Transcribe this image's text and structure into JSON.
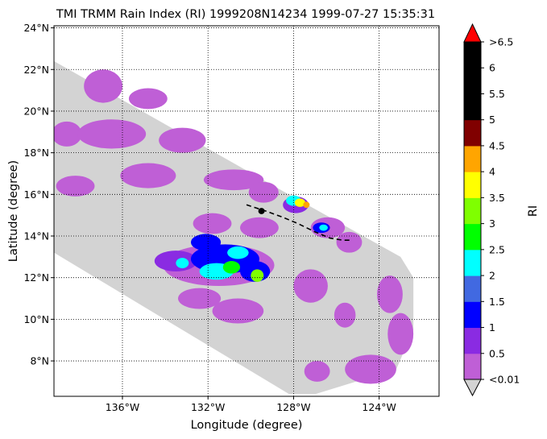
{
  "chart_data": {
    "type": "heatmap",
    "title": "TMI TRMM Rain Index (RI) 1999208N14234 1999-07-27 15:35:31",
    "xlabel": "Longitude (degree)",
    "ylabel": "Latitude (degree)",
    "xlim": [
      -139.2,
      -121.2
    ],
    "ylim": [
      6.3,
      24.1
    ],
    "grid": true,
    "x_ticks": [
      {
        "value": -136,
        "label": "136°W"
      },
      {
        "value": -132,
        "label": "132°W"
      },
      {
        "value": -128,
        "label": "128°W"
      },
      {
        "value": -124,
        "label": "124°W"
      }
    ],
    "y_ticks": [
      {
        "value": 8,
        "label": "8°N"
      },
      {
        "value": 10,
        "label": "10°N"
      },
      {
        "value": 12,
        "label": "12°N"
      },
      {
        "value": 14,
        "label": "14°N"
      },
      {
        "value": 16,
        "label": "16°N"
      },
      {
        "value": 18,
        "label": "18°N"
      },
      {
        "value": 20,
        "label": "20°N"
      },
      {
        "value": 22,
        "label": "22°N"
      },
      {
        "value": 24,
        "label": "24°N"
      }
    ],
    "swath_color": "#d3d3d3",
    "swath_polygon": [
      [
        -139.2,
        22.4
      ],
      [
        -128.4,
        16.1
      ],
      [
        -123.0,
        13.0
      ],
      [
        -122.4,
        12.0
      ],
      [
        -122.4,
        9.5
      ],
      [
        -123.2,
        7.6
      ],
      [
        -127.0,
        6.4
      ],
      [
        -128.2,
        6.4
      ],
      [
        -139.2,
        13.2
      ]
    ],
    "rain_cells": [
      {
        "lon": -138.6,
        "lat": 18.9,
        "rx": 0.7,
        "ry": 0.6,
        "ri": 0.3
      },
      {
        "lon": -136.5,
        "lat": 18.9,
        "rx": 1.6,
        "ry": 0.7,
        "ri": 0.3
      },
      {
        "lon": -133.2,
        "lat": 18.6,
        "rx": 1.1,
        "ry": 0.6,
        "ri": 0.3
      },
      {
        "lon": -136.9,
        "lat": 21.2,
        "rx": 0.9,
        "ry": 0.8,
        "ri": 0.3
      },
      {
        "lon": -134.8,
        "lat": 20.6,
        "rx": 0.9,
        "ry": 0.5,
        "ri": 0.3
      },
      {
        "lon": -138.2,
        "lat": 16.4,
        "rx": 0.9,
        "ry": 0.5,
        "ri": 0.3
      },
      {
        "lon": -134.8,
        "lat": 16.9,
        "rx": 1.3,
        "ry": 0.6,
        "ri": 0.3
      },
      {
        "lon": -130.8,
        "lat": 16.7,
        "rx": 1.4,
        "ry": 0.5,
        "ri": 0.3
      },
      {
        "lon": -129.4,
        "lat": 16.1,
        "rx": 0.7,
        "ry": 0.5,
        "ri": 0.3
      },
      {
        "lon": -131.8,
        "lat": 14.6,
        "rx": 0.9,
        "ry": 0.5,
        "ri": 0.3
      },
      {
        "lon": -129.6,
        "lat": 14.4,
        "rx": 0.9,
        "ry": 0.5,
        "ri": 0.3
      },
      {
        "lon": -126.4,
        "lat": 14.4,
        "rx": 0.8,
        "ry": 0.5,
        "ri": 0.3
      },
      {
        "lon": -125.4,
        "lat": 13.7,
        "rx": 0.6,
        "ry": 0.5,
        "ri": 0.3
      },
      {
        "lon": -127.2,
        "lat": 11.6,
        "rx": 0.8,
        "ry": 0.8,
        "ri": 0.3
      },
      {
        "lon": -130.6,
        "lat": 10.4,
        "rx": 1.2,
        "ry": 0.6,
        "ri": 0.3
      },
      {
        "lon": -125.6,
        "lat": 10.2,
        "rx": 0.5,
        "ry": 0.6,
        "ri": 0.3
      },
      {
        "lon": -123.5,
        "lat": 11.2,
        "rx": 0.6,
        "ry": 0.9,
        "ri": 0.3
      },
      {
        "lon": -123.0,
        "lat": 9.3,
        "rx": 0.6,
        "ry": 1.0,
        "ri": 0.3
      },
      {
        "lon": -124.4,
        "lat": 7.6,
        "rx": 1.2,
        "ry": 0.7,
        "ri": 0.3
      },
      {
        "lon": -126.9,
        "lat": 7.5,
        "rx": 0.6,
        "ry": 0.5,
        "ri": 0.3
      },
      {
        "lon": -132.4,
        "lat": 11.0,
        "rx": 1.0,
        "ry": 0.5,
        "ri": 0.3
      },
      {
        "lon": -131.5,
        "lat": 12.6,
        "rx": 2.6,
        "ry": 1.0,
        "ri": 0.3
      },
      {
        "lon": -133.5,
        "lat": 12.8,
        "rx": 1.0,
        "ry": 0.5,
        "ri": 0.8
      },
      {
        "lon": -131.2,
        "lat": 12.9,
        "rx": 1.6,
        "ry": 0.7,
        "ri": 1.2
      },
      {
        "lon": -129.8,
        "lat": 12.3,
        "rx": 0.7,
        "ry": 0.5,
        "ri": 1.2
      },
      {
        "lon": -131.6,
        "lat": 12.3,
        "rx": 0.8,
        "ry": 0.4,
        "ri": 2.2
      },
      {
        "lon": -130.9,
        "lat": 12.5,
        "rx": 0.4,
        "ry": 0.3,
        "ri": 2.7
      },
      {
        "lon": -130.6,
        "lat": 13.2,
        "rx": 0.5,
        "ry": 0.3,
        "ri": 2.2
      },
      {
        "lon": -129.7,
        "lat": 12.1,
        "rx": 0.3,
        "ry": 0.3,
        "ri": 3.2
      },
      {
        "lon": -133.2,
        "lat": 12.7,
        "rx": 0.3,
        "ry": 0.25,
        "ri": 2.2
      },
      {
        "lon": -132.1,
        "lat": 13.7,
        "rx": 0.7,
        "ry": 0.4,
        "ri": 1.2
      },
      {
        "lon": -127.9,
        "lat": 15.5,
        "rx": 0.6,
        "ry": 0.4,
        "ri": 0.8
      },
      {
        "lon": -128.0,
        "lat": 15.7,
        "rx": 0.35,
        "ry": 0.25,
        "ri": 2.2
      },
      {
        "lon": -127.7,
        "lat": 15.6,
        "rx": 0.25,
        "ry": 0.2,
        "ri": 3.7
      },
      {
        "lon": -127.4,
        "lat": 15.5,
        "rx": 0.15,
        "ry": 0.15,
        "ri": 4.2
      },
      {
        "lon": -126.7,
        "lat": 14.4,
        "rx": 0.4,
        "ry": 0.25,
        "ri": 1.2
      },
      {
        "lon": -126.6,
        "lat": 14.4,
        "rx": 0.2,
        "ry": 0.15,
        "ri": 2.2
      },
      {
        "lon": -129.5,
        "lat": 15.2,
        "rx": 0.15,
        "ry": 0.15,
        "ri": 5.2
      }
    ],
    "track": [
      [
        -130.2,
        15.5
      ],
      [
        -129.3,
        15.2
      ],
      [
        -128.5,
        14.9
      ],
      [
        -127.8,
        14.6
      ],
      [
        -127.0,
        14.2
      ],
      [
        -126.3,
        13.9
      ],
      [
        -125.7,
        13.8
      ],
      [
        -125.3,
        13.8
      ]
    ],
    "colorbar": {
      "label": "RI",
      "over_color": "#ff0000",
      "under_color": "#d3d3d3",
      "over_label": ">6.5",
      "under_label": "<0.01",
      "colors": [
        "#bf5fd6",
        "#8a2be2",
        "#0000ff",
        "#4169e1",
        "#00ffff",
        "#00ff00",
        "#7fff00",
        "#ffff00",
        "#ffa500",
        "#800000",
        "#000000",
        "#000000",
        "#000000"
      ],
      "tick_labels": [
        "0.5",
        "1",
        "1.5",
        "2",
        "2.5",
        "3",
        "3.5",
        "4",
        "4.5",
        "5",
        "5.5",
        "6"
      ],
      "bounds": [
        0.01,
        0.5,
        1,
        1.5,
        2,
        2.5,
        3,
        3.5,
        4,
        4.5,
        5,
        5.5,
        6,
        6.5
      ]
    }
  }
}
